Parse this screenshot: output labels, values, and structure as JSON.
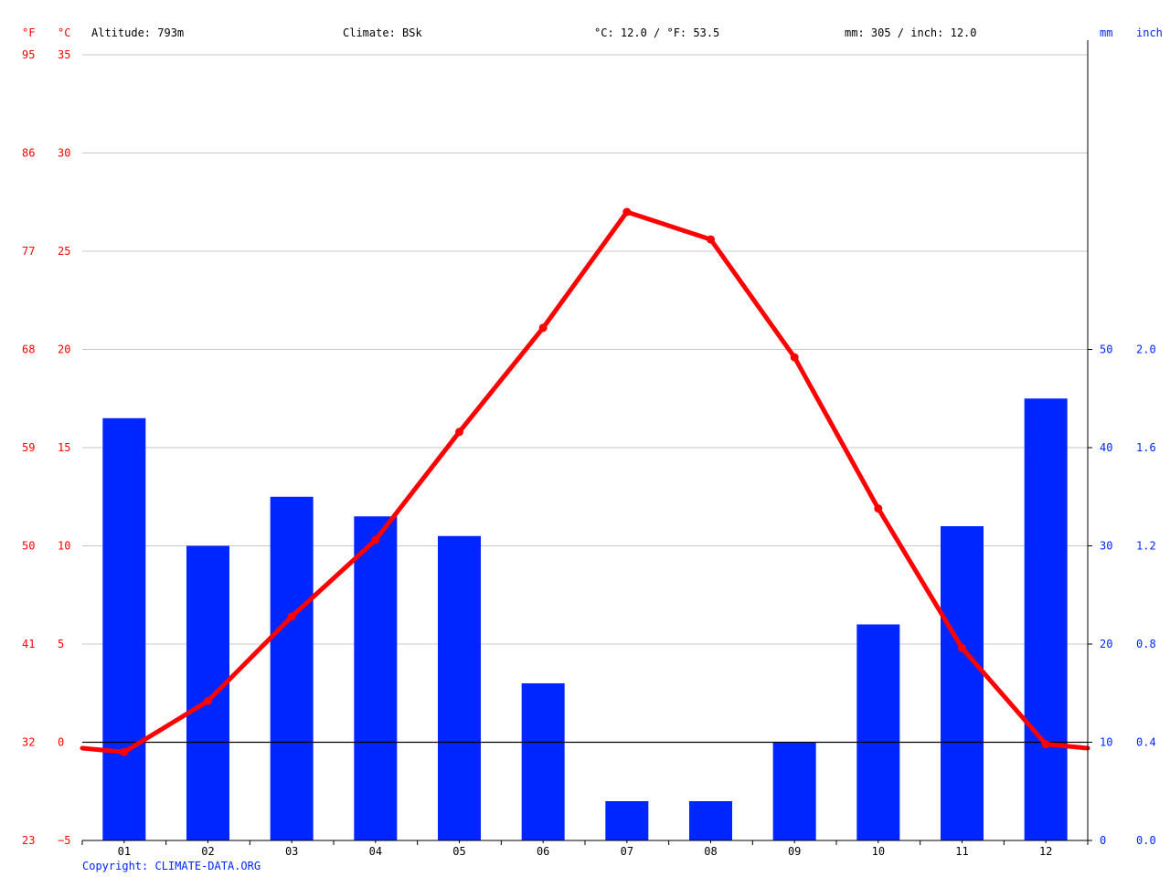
{
  "header": {
    "unit_f": "°F",
    "unit_c": "°C",
    "altitude": "Altitude: 793m",
    "climate": "Climate: BSk",
    "avg_temp": "°C: 12.0 / °F: 53.5",
    "precip_total": "mm: 305 / inch: 12.0",
    "unit_mm": "mm",
    "unit_inch": "inch"
  },
  "footer": {
    "copyright": "Copyright: CLIMATE-DATA.ORG"
  },
  "colors": {
    "temperature": "#ff0000",
    "precipitation": "#0026ff",
    "grid": "#c8c8c8",
    "axis": "#000000"
  },
  "chart_data": {
    "type": "bar",
    "categories": [
      "01",
      "02",
      "03",
      "04",
      "05",
      "06",
      "07",
      "08",
      "09",
      "10",
      "11",
      "12"
    ],
    "series": [
      {
        "type": "bar",
        "axis": "right",
        "values": [
          43,
          30,
          35,
          33,
          31,
          16,
          4,
          4,
          10,
          22,
          32,
          45
        ]
      },
      {
        "type": "line",
        "axis": "left",
        "values": [
          -0.5,
          2.1,
          6.4,
          10.3,
          15.8,
          21.1,
          27.0,
          25.6,
          19.6,
          11.9,
          4.8,
          -0.1
        ]
      }
    ],
    "line_edge_values": {
      "start": -0.3,
      "end": -0.3
    },
    "left_axis": {
      "ylim": [
        -5,
        35
      ],
      "ticks_c": [
        "35",
        "30",
        "25",
        "20",
        "15",
        "10",
        "5",
        "0",
        "−5"
      ],
      "ticks_f": [
        "95",
        "86",
        "77",
        "68",
        "59",
        "50",
        "41",
        "32",
        "23"
      ]
    },
    "right_axis": {
      "ylim": [
        0,
        50
      ],
      "ticks_mm": [
        "50",
        "40",
        "30",
        "20",
        "10",
        "0"
      ],
      "ticks_inch": [
        "2.0",
        "1.6",
        "1.2",
        "0.8",
        "0.4",
        "0.0"
      ]
    },
    "grid": true
  }
}
